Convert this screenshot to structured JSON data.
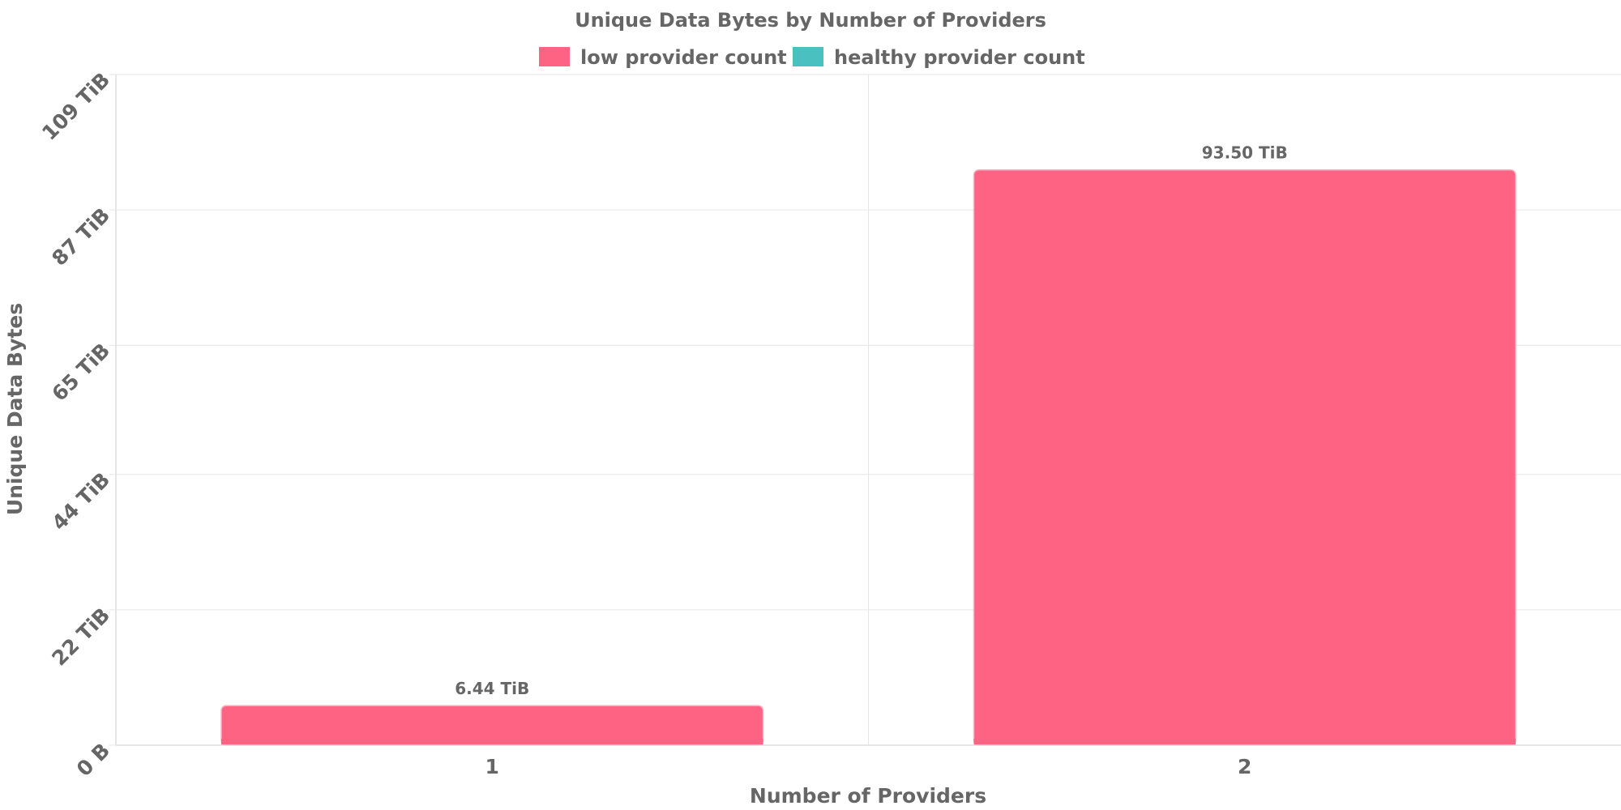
{
  "chart_data": {
    "type": "bar",
    "title": "Unique Data Bytes by Number of Providers",
    "xlabel": "Number of Providers",
    "ylabel": "Unique Data Bytes",
    "categories": [
      "1",
      "2"
    ],
    "series": [
      {
        "name": "low provider count",
        "color": "#ff6384",
        "values": [
          6.44,
          93.5
        ],
        "labels": [
          "6.44 TiB",
          "93.50 TiB"
        ]
      },
      {
        "name": "healthy provider count",
        "color": "#4bc0c0",
        "values": [
          null,
          null
        ],
        "labels": [
          "",
          ""
        ]
      }
    ],
    "y_unit": "TiB",
    "ylim": [
      0,
      109
    ],
    "y_ticks": [
      0,
      22,
      44,
      65,
      87,
      109
    ],
    "y_tick_labels": [
      "0 B",
      "22 TiB",
      "44 TiB",
      "65 TiB",
      "87 TiB",
      "109 TiB"
    ],
    "grid": true,
    "legend_position": "top"
  }
}
